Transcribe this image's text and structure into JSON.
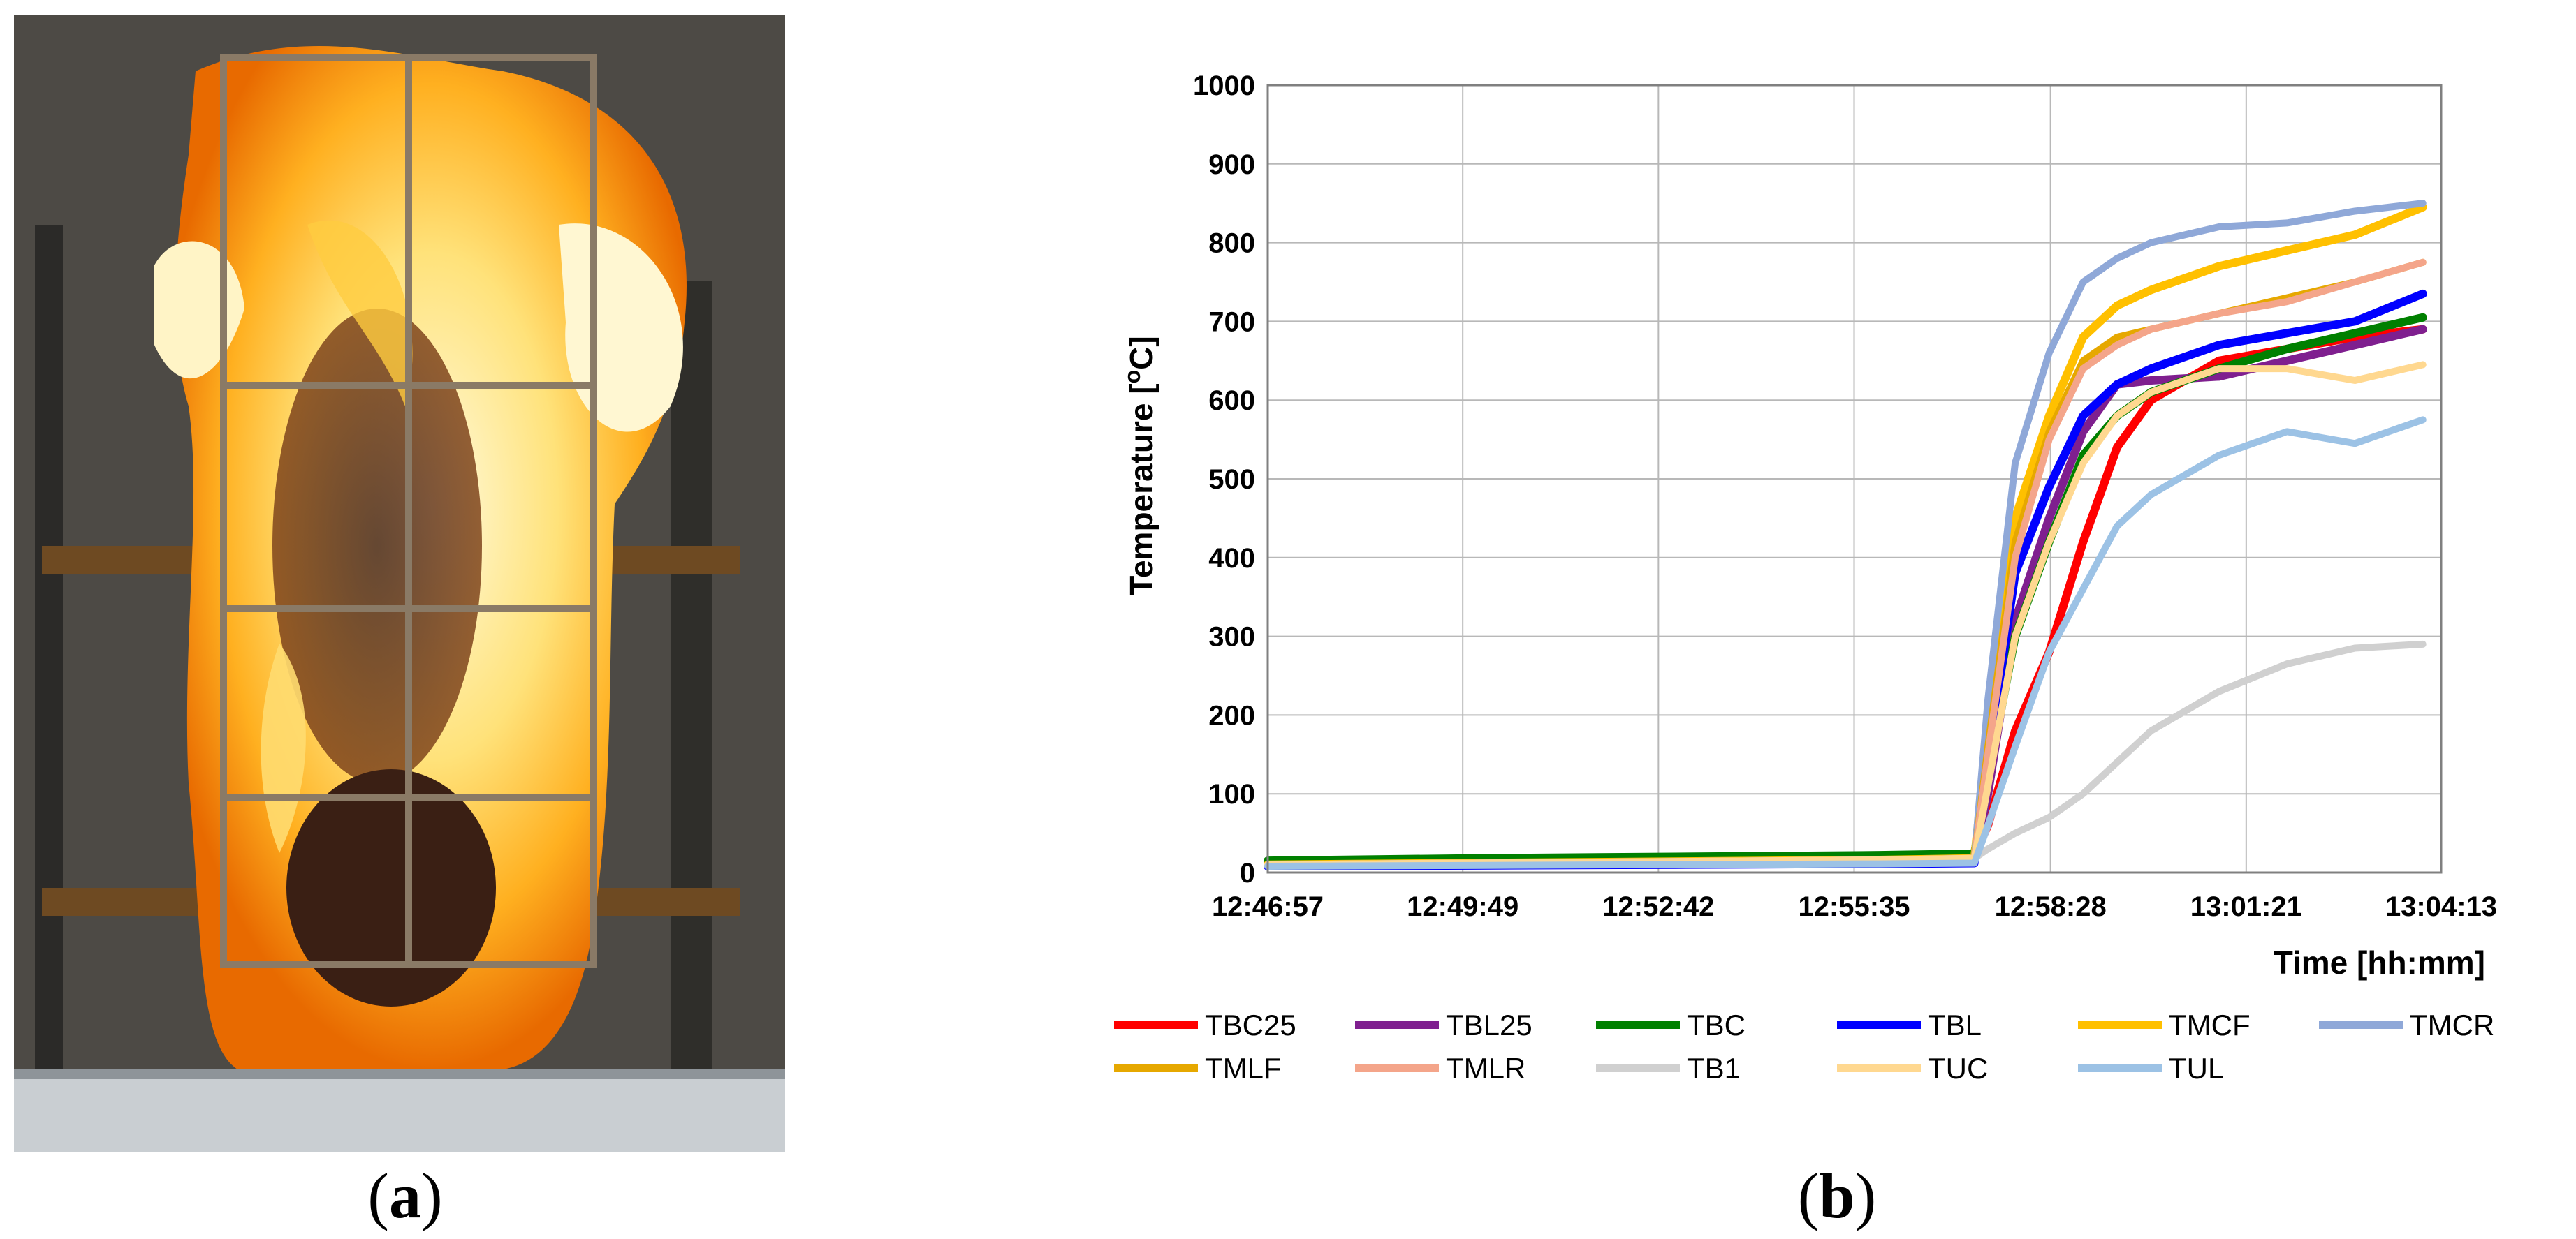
{
  "panels": {
    "a": {
      "caption_open": "(",
      "caption_letter": "a",
      "caption_close": ")"
    },
    "b": {
      "caption_open": "(",
      "caption_letter": "b",
      "caption_close": ")"
    }
  },
  "chart_data": {
    "type": "line",
    "title": "",
    "xlabel": "Time [hh:mm]",
    "ylabel_parts": {
      "prefix": "Temperature [",
      "sup": "o",
      "suffix": "C]"
    },
    "x_ticks": [
      "12:46:57",
      "12:49:49",
      "12:52:42",
      "12:55:35",
      "12:58:28",
      "13:01:21",
      "13:04:13"
    ],
    "x_tick_minutes": [
      0,
      2.87,
      5.75,
      8.63,
      11.52,
      14.4,
      17.27
    ],
    "x_unit": "minutes after 12:46:57",
    "xlim": [
      0,
      17.27
    ],
    "ylim": [
      0,
      1000
    ],
    "y_ticks": [
      0,
      100,
      200,
      300,
      400,
      500,
      600,
      700,
      800,
      900,
      1000
    ],
    "grid": true,
    "legend_position": "bottom",
    "x": [
      0,
      3,
      6,
      9,
      10.4,
      10.6,
      11.0,
      11.5,
      12.0,
      12.5,
      13.0,
      14.0,
      15.0,
      16.0,
      17.0
    ],
    "series": [
      {
        "name": "TBC25",
        "color": "#ff0000",
        "width": 12,
        "values": [
          12,
          15,
          18,
          20,
          22,
          60,
          180,
          280,
          420,
          540,
          600,
          650,
          665,
          680,
          690
        ]
      },
      {
        "name": "TBL25",
        "color": "#7f1f8f",
        "width": 12,
        "values": [
          10,
          12,
          15,
          18,
          20,
          100,
          320,
          450,
          560,
          620,
          625,
          630,
          650,
          670,
          690
        ]
      },
      {
        "name": "TBC",
        "color": "#008000",
        "width": 12,
        "values": [
          15,
          18,
          20,
          22,
          24,
          120,
          300,
          420,
          530,
          580,
          610,
          640,
          665,
          685,
          705
        ]
      },
      {
        "name": "TBL",
        "color": "#0000ff",
        "width": 12,
        "values": [
          8,
          9,
          10,
          11,
          12,
          140,
          380,
          490,
          580,
          620,
          640,
          670,
          685,
          700,
          735
        ]
      },
      {
        "name": "TMCF",
        "color": "#ffc000",
        "width": 12,
        "values": [
          10,
          12,
          14,
          16,
          18,
          180,
          450,
          580,
          680,
          720,
          740,
          770,
          790,
          810,
          845
        ]
      },
      {
        "name": "TMCR",
        "color": "#8fa8d8",
        "width": 10,
        "values": [
          10,
          12,
          14,
          16,
          18,
          220,
          520,
          660,
          750,
          780,
          800,
          820,
          825,
          840,
          850
        ]
      },
      {
        "name": "TMLF",
        "color": "#e6a800",
        "width": 10,
        "values": [
          10,
          12,
          14,
          16,
          18,
          160,
          420,
          560,
          650,
          680,
          690,
          710,
          730,
          750,
          775
        ]
      },
      {
        "name": "TMLR",
        "color": "#f4a58a",
        "width": 10,
        "values": [
          10,
          12,
          14,
          16,
          18,
          150,
          400,
          550,
          640,
          670,
          690,
          710,
          725,
          750,
          775
        ]
      },
      {
        "name": "TB1",
        "color": "#d0d0d0",
        "width": 10,
        "values": [
          10,
          12,
          14,
          16,
          18,
          30,
          50,
          70,
          100,
          140,
          180,
          230,
          265,
          285,
          290
        ]
      },
      {
        "name": "TUC",
        "color": "#ffd890",
        "width": 10,
        "values": [
          10,
          12,
          14,
          16,
          18,
          110,
          300,
          420,
          520,
          580,
          610,
          640,
          640,
          625,
          645
        ]
      },
      {
        "name": "TUL",
        "color": "#9cc2e5",
        "width": 10,
        "values": [
          8,
          9,
          10,
          11,
          12,
          60,
          160,
          280,
          360,
          440,
          480,
          530,
          560,
          545,
          575
        ]
      }
    ]
  }
}
